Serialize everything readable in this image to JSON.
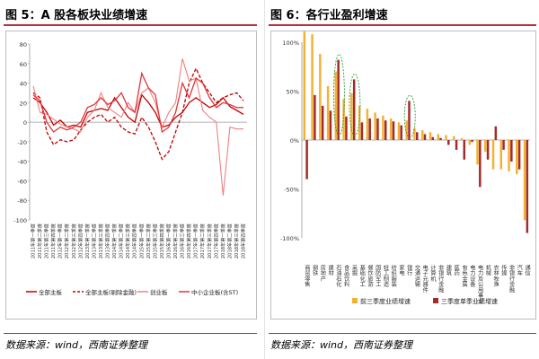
{
  "left": {
    "title": "图 5：A 股各板块业绩增速",
    "source": "数据来源：wind，西南证券整理"
  },
  "right": {
    "title": "图 6：各行业盈利增速",
    "source": "数据来源：wind，西南证券整理"
  },
  "chart_data": [
    {
      "type": "line",
      "title": "图 5：A 股各板块业绩增速",
      "x": [
        "2011年第一季度",
        "2011年第二季度",
        "2011年第三季度",
        "2011年第四季度",
        "2012年第一季度",
        "2012年第二季度",
        "2012年第三季度",
        "2012年第四季度",
        "2013年第一季度",
        "2013年第二季度",
        "2013年第三季度",
        "2013年第四季度",
        "2014年第一季度",
        "2014年第二季度",
        "2014年第三季度",
        "2014年第四季度",
        "2015年第一季度",
        "2015年第二季度",
        "2015年第三季度",
        "2015年第四季度",
        "2016年第一季度",
        "2016年第二季度",
        "2016年第三季度",
        "2016年第四季度",
        "2017年第一季度",
        "2017年第二季度",
        "2017年第三季度",
        "2017年第四季度",
        "2018年第一季度",
        "2018年第二季度",
        "2018年第三季度",
        "2018年第四季度"
      ],
      "ylim": [
        -100,
        80
      ],
      "yticks": [
        -100,
        -80,
        -60,
        -40,
        -20,
        0,
        20,
        40,
        60,
        80
      ],
      "legend": "bottom",
      "series": [
        {
          "name": "全部主板",
          "color": "#c00000",
          "style": "solid",
          "values": [
            25,
            20,
            10,
            -3,
            2,
            -5,
            -3,
            -5,
            10,
            12,
            14,
            12,
            25,
            15,
            5,
            0,
            28,
            20,
            10,
            -5,
            -3,
            5,
            10,
            20,
            25,
            20,
            15,
            18,
            25,
            16,
            12,
            8
          ]
        },
        {
          "name": "全部主板(剔除金融)",
          "color": "#c00000",
          "style": "dashed",
          "values": [
            30,
            25,
            -10,
            -23,
            -18,
            -20,
            -18,
            -8,
            0,
            5,
            8,
            0,
            5,
            -5,
            -10,
            -12,
            5,
            -5,
            -20,
            -38,
            -30,
            -10,
            10,
            40,
            55,
            40,
            30,
            20,
            25,
            28,
            30,
            22
          ]
        },
        {
          "name": "创业板",
          "color": "#f08080",
          "style": "solid",
          "values": [
            37,
            10,
            8,
            3,
            -2,
            -5,
            -7,
            -10,
            5,
            12,
            30,
            15,
            10,
            5,
            20,
            10,
            30,
            35,
            20,
            -5,
            10,
            20,
            65,
            42,
            45,
            12,
            5,
            0,
            -75,
            -5,
            -7,
            -7
          ]
        },
        {
          "name": "中小企业板(含ST)",
          "color": "#e0353a",
          "style": "solid",
          "values": [
            28,
            22,
            0,
            -10,
            -5,
            -8,
            -5,
            0,
            15,
            18,
            25,
            18,
            22,
            30,
            15,
            10,
            50,
            35,
            28,
            -10,
            -5,
            10,
            40,
            25,
            45,
            40,
            25,
            15,
            20,
            18,
            15,
            15
          ]
        }
      ]
    },
    {
      "type": "bar",
      "title": "图 6：各行业盈利增速",
      "categories": [
        "商贸零售",
        "钢铁",
        "房地产",
        "建材",
        "石油石化",
        "食品饮料",
        "采掘",
        "基础化工",
        "餐饮旅游",
        "国防军工",
        "轻工制造",
        "纺织服装",
        "家电",
        "银行",
        "交通运输",
        "电子元器件",
        "计算机",
        "非银行金融",
        "建筑",
        "医药",
        "有色金属",
        "电力设备",
        "电力及公用事业",
        "机械",
        "农林牧渔",
        "传媒",
        "非银行金融",
        "汽车",
        "通信"
      ],
      "ylim": [
        -100,
        100
      ],
      "yticks": [
        -100,
        -50,
        0,
        50,
        100
      ],
      "legend": "bottom",
      "series": [
        {
          "name": "前三季度业绩增速",
          "color": "#f2b233",
          "values": [
            112,
            108,
            88,
            55,
            70,
            42,
            48,
            35,
            32,
            28,
            25,
            22,
            18,
            20,
            12,
            10,
            8,
            6,
            5,
            4,
            2,
            -5,
            -25,
            -12,
            -30,
            -30,
            -32,
            -35,
            -82
          ]
        },
        {
          "name": "三季度单季业绩增速",
          "color": "#a52a2a",
          "values": [
            -40,
            46,
            35,
            30,
            82,
            24,
            62,
            18,
            22,
            22,
            20,
            19,
            15,
            40,
            8,
            6,
            3,
            2,
            -5,
            -10,
            -20,
            -2,
            -48,
            -20,
            14,
            -10,
            -22,
            -30,
            -95
          ]
        }
      ]
    }
  ]
}
